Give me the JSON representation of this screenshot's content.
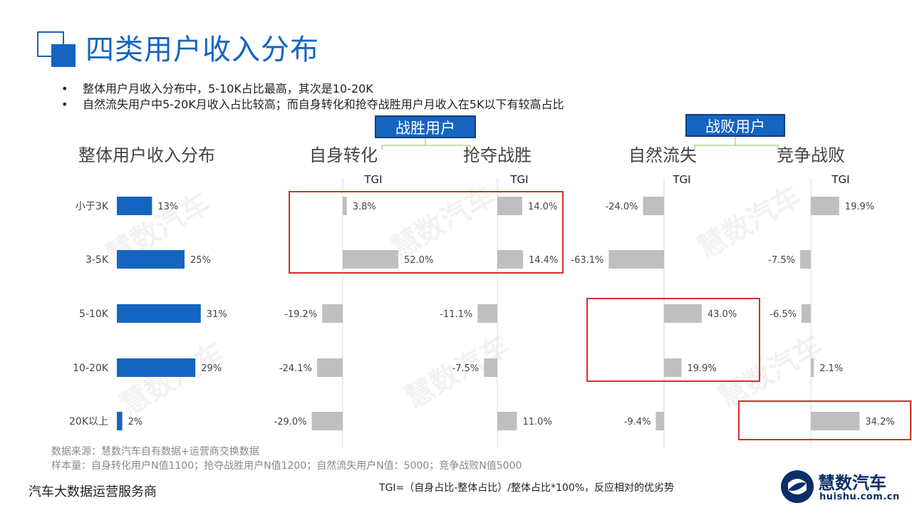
{
  "title": "四类用户收入分布",
  "bullets": [
    "整体用户月收入分布中，5-10K占比最高，其次是10-20K",
    "自然流失用户中5-20K月收入占比较高；而自身转化和抢夺战胜用户月收入在5K以下有较高占比"
  ],
  "groups": {
    "win": "战胜用户",
    "lose": "战败用户"
  },
  "tgi_label": "TGI",
  "watermark": "慧数汽车",
  "footnotes": [
    "数据来源：慧数汽车自有数据+运营商交换数据",
    "样本量：自身转化用户N值1100；抢夺战胜用户N值1200；自然流失用户N值：5000；竞争战败N值5000"
  ],
  "bottom_left": "汽车大数据运营服务商",
  "formula": "TGI=（自身占比-整体占比）/整体占比*100%，反应相对的优劣势",
  "logo": {
    "cn": "慧数汽车",
    "en": "huishu.com.cn"
  },
  "colors": {
    "blue": "#1565c0",
    "gray": "#bfbfbf",
    "red": "#d32f2f"
  },
  "chart_data": [
    {
      "type": "bar",
      "orientation": "horizontal",
      "title": "整体用户收入分布",
      "categories": [
        "小于3K",
        "3-5K",
        "5-10K",
        "10-20K",
        "20K以上"
      ],
      "values": [
        13,
        25,
        31,
        29,
        2
      ],
      "labels": [
        "13%",
        "25%",
        "31%",
        "29%",
        "2%"
      ]
    },
    {
      "type": "bar",
      "orientation": "horizontal",
      "title": "自身转化",
      "subtitle": "TGI",
      "categories": [
        "小于3K",
        "3-5K",
        "5-10K",
        "10-20K",
        "20K以上"
      ],
      "values": [
        3.8,
        52.0,
        -19.2,
        -24.1,
        -29.0
      ],
      "labels": [
        "3.8%",
        "52.0%",
        "-19.2%",
        "-24.1%",
        "-29.0%"
      ]
    },
    {
      "type": "bar",
      "orientation": "horizontal",
      "title": "抢夺战胜",
      "subtitle": "TGI",
      "categories": [
        "小于3K",
        "3-5K",
        "5-10K",
        "10-20K",
        "20K以上"
      ],
      "values": [
        14.0,
        14.4,
        -11.1,
        -7.5,
        11.0
      ],
      "labels": [
        "14.0%",
        "14.4%",
        "-11.1%",
        "-7.5%",
        "11.0%"
      ]
    },
    {
      "type": "bar",
      "orientation": "horizontal",
      "title": "自然流失",
      "subtitle": "TGI",
      "categories": [
        "小于3K",
        "3-5K",
        "5-10K",
        "10-20K",
        "20K以上"
      ],
      "values": [
        -24.0,
        -63.1,
        43.0,
        19.9,
        -9.4
      ],
      "labels": [
        "-24.0%",
        "-63.1%",
        "43.0%",
        "19.9%",
        "-9.4%"
      ]
    },
    {
      "type": "bar",
      "orientation": "horizontal",
      "title": "竞争战败",
      "subtitle": "TGI",
      "categories": [
        "小于3K",
        "3-5K",
        "5-10K",
        "10-20K",
        "20K以上"
      ],
      "values": [
        19.9,
        -7.5,
        -6.5,
        2.1,
        34.2
      ],
      "labels": [
        "19.9%",
        "-7.5%",
        "-6.5%",
        "2.1%",
        "34.2%"
      ]
    }
  ]
}
